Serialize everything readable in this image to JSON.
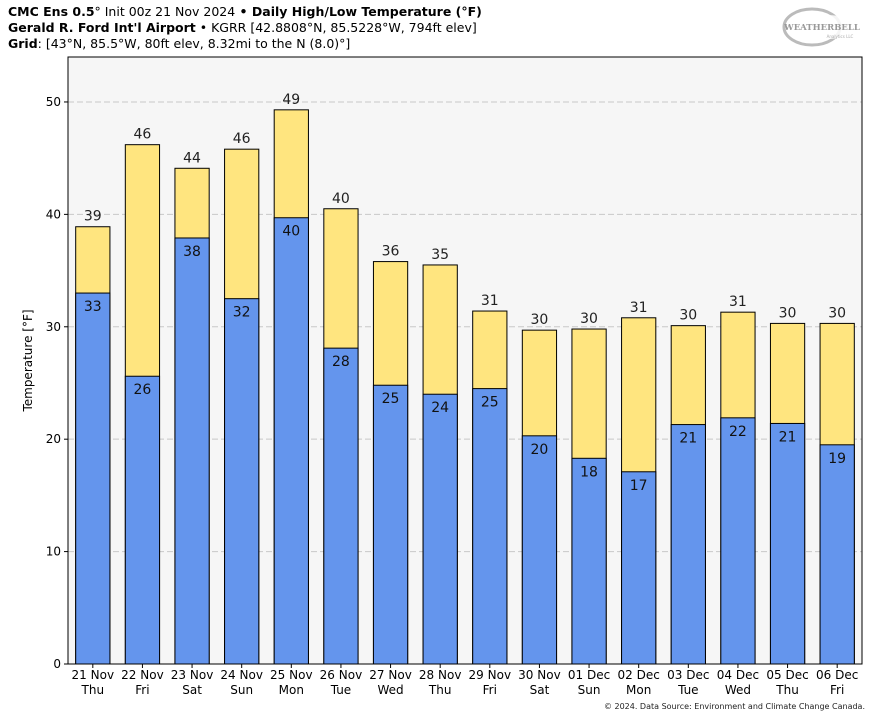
{
  "header": {
    "line1": {
      "model": "CMC Ens 0.5",
      "init": "° Init 00z 21 Nov 2024",
      "sep": " • ",
      "product": "Daily High/Low Temperature (°F)"
    },
    "line2": {
      "station": "Gerald R. Ford Int'l Airport",
      "details": " • KGRR [42.8808°N, 85.5228°W, 794ft elev]"
    },
    "line3": {
      "label": "Grid",
      "details": ": [43°N, 85.5°W, 80ft elev, 8.32mi to the N (8.0)°]"
    }
  },
  "logo": {
    "text": "WEATHERBELL",
    "sub": "Analytics LLC"
  },
  "credit": "© 2024. Data Source: Environment and Climate Change Canada.",
  "colors": {
    "high": "#ffe57f",
    "low": "#6495ed",
    "plot_bg": "#f6f6f6",
    "grid": "#c8c8c8"
  },
  "chart_data": {
    "type": "bar",
    "ylabel": "Temperature [°F]",
    "ylim": [
      0,
      54
    ],
    "yticks": [
      0,
      10,
      20,
      30,
      40,
      50
    ],
    "grid": true,
    "categories": [
      [
        "21 Nov",
        "Thu"
      ],
      [
        "22 Nov",
        "Fri"
      ],
      [
        "23 Nov",
        "Sat"
      ],
      [
        "24 Nov",
        "Sun"
      ],
      [
        "25 Nov",
        "Mon"
      ],
      [
        "26 Nov",
        "Tue"
      ],
      [
        "27 Nov",
        "Wed"
      ],
      [
        "28 Nov",
        "Thu"
      ],
      [
        "29 Nov",
        "Fri"
      ],
      [
        "30 Nov",
        "Sat"
      ],
      [
        "01 Dec",
        "Sun"
      ],
      [
        "02 Dec",
        "Mon"
      ],
      [
        "03 Dec",
        "Tue"
      ],
      [
        "04 Dec",
        "Wed"
      ],
      [
        "05 Dec",
        "Thu"
      ],
      [
        "06 Dec",
        "Fri"
      ]
    ],
    "series": [
      {
        "values": [
          38.9,
          46.2,
          44.1,
          45.8,
          49.3,
          40.5,
          35.8,
          35.5,
          31.4,
          29.7,
          29.8,
          30.8,
          30.1,
          31.3,
          30.3,
          30.3
        ],
        "labels": [
          "39",
          "46",
          "44",
          "46",
          "49",
          "40",
          "36",
          "35",
          "31",
          "30",
          "30",
          "31",
          "30",
          "31",
          "30",
          "30"
        ]
      },
      {
        "values": [
          33.0,
          25.6,
          37.9,
          32.5,
          39.7,
          28.1,
          24.8,
          24.0,
          24.5,
          20.3,
          18.3,
          17.1,
          21.3,
          21.9,
          21.4,
          19.5
        ],
        "labels": [
          "33",
          "26",
          "38",
          "32",
          "40",
          "28",
          "25",
          "24",
          "25",
          "20",
          "18",
          "17",
          "21",
          "22",
          "21",
          "19"
        ]
      }
    ]
  }
}
